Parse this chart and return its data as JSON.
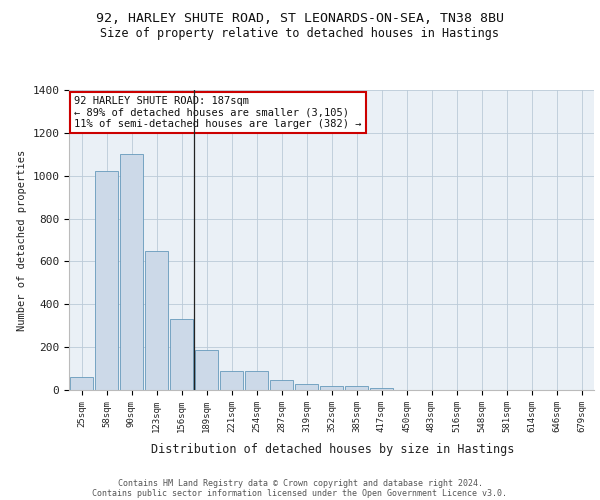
{
  "title1": "92, HARLEY SHUTE ROAD, ST LEONARDS-ON-SEA, TN38 8BU",
  "title2": "Size of property relative to detached houses in Hastings",
  "xlabel": "Distribution of detached houses by size in Hastings",
  "ylabel": "Number of detached properties",
  "categories": [
    "25sqm",
    "58sqm",
    "90sqm",
    "123sqm",
    "156sqm",
    "189sqm",
    "221sqm",
    "254sqm",
    "287sqm",
    "319sqm",
    "352sqm",
    "385sqm",
    "417sqm",
    "450sqm",
    "483sqm",
    "516sqm",
    "548sqm",
    "581sqm",
    "614sqm",
    "646sqm",
    "679sqm"
  ],
  "values": [
    62,
    1020,
    1100,
    650,
    330,
    185,
    90,
    90,
    45,
    28,
    20,
    20,
    10,
    0,
    0,
    0,
    0,
    0,
    0,
    0,
    0
  ],
  "bar_color": "#ccd9e8",
  "bar_edge_color": "#6699bb",
  "annotation_line1": "92 HARLEY SHUTE ROAD: 187sqm",
  "annotation_line2": "← 89% of detached houses are smaller (3,105)",
  "annotation_line3": "11% of semi-detached houses are larger (382) →",
  "annotation_box_color": "#ffffff",
  "annotation_box_edge_color": "#cc0000",
  "vline_x": 4.5,
  "bg_color": "#eaf0f6",
  "footer1": "Contains HM Land Registry data © Crown copyright and database right 2024.",
  "footer2": "Contains public sector information licensed under the Open Government Licence v3.0.",
  "ylim": [
    0,
    1400
  ],
  "yticks": [
    0,
    200,
    400,
    600,
    800,
    1000,
    1200,
    1400
  ]
}
